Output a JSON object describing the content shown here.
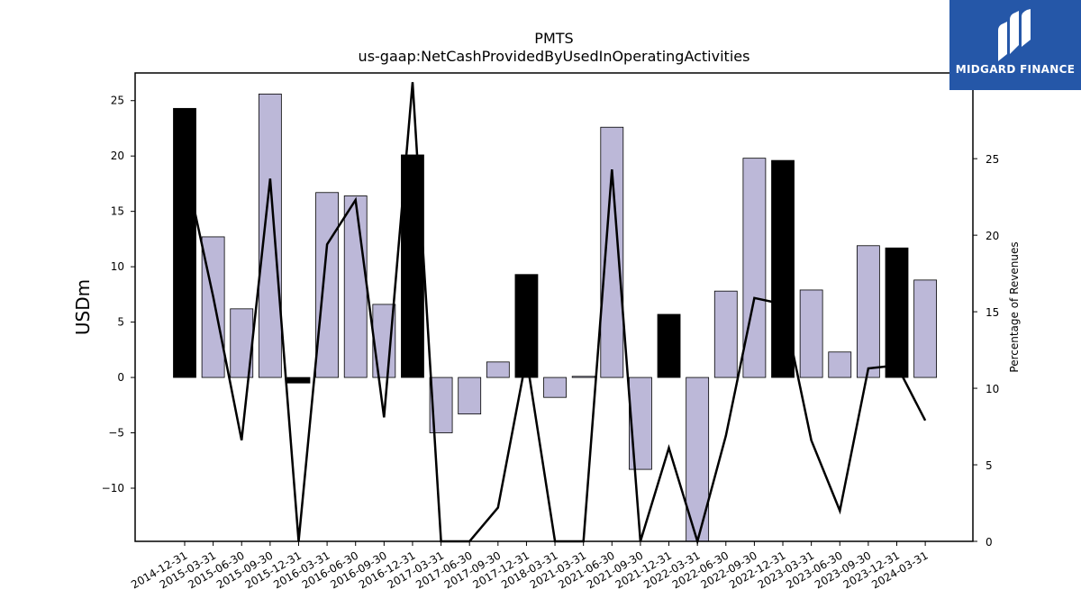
{
  "title_line1": "PMTS",
  "title_line2": "us-gaap:NetCashProvidedByUsedInOperatingActivities",
  "ylabel_left": "USDm",
  "ylabel_right": "Percentage of Revenues",
  "logo_text": "MIDGARD FINANCE",
  "colors": {
    "annual_bar": "#000000",
    "quarter_bar": "#bcb8d8",
    "line": "#000000",
    "logo_bg": "#2557a8"
  },
  "chart_data": {
    "type": "bar",
    "categories": [
      "2014-12-31",
      "2015-03-31",
      "2015-06-30",
      "2015-09-30",
      "2015-12-31",
      "2016-03-31",
      "2016-06-30",
      "2016-09-30",
      "2016-12-31",
      "2017-03-31",
      "2017-06-30",
      "2017-09-30",
      "2017-12-31",
      "2018-03-31",
      "2021-03-31",
      "2021-06-30",
      "2021-09-30",
      "2021-12-31",
      "2022-03-31",
      "2022-06-30",
      "2022-09-30",
      "2022-12-31",
      "2023-03-31",
      "2023-06-30",
      "2023-09-30",
      "2023-12-31",
      "2024-03-31"
    ],
    "series": [
      {
        "kind": "bar",
        "axis": "left",
        "values": [
          24.3,
          12.7,
          6.2,
          25.6,
          -0.5,
          16.7,
          16.4,
          6.6,
          20.1,
          -5.0,
          -3.3,
          1.4,
          9.3,
          -1.8,
          0.1,
          22.6,
          -8.3,
          5.7,
          -14.8,
          7.8,
          19.8,
          19.6,
          7.9,
          2.3,
          11.9,
          11.7,
          8.8
        ],
        "annual": [
          true,
          false,
          false,
          false,
          true,
          false,
          false,
          false,
          true,
          false,
          false,
          false,
          true,
          false,
          false,
          false,
          false,
          true,
          false,
          false,
          false,
          true,
          false,
          false,
          false,
          true,
          false
        ]
      },
      {
        "kind": "line",
        "axis": "right",
        "values": [
          24.6,
          16.0,
          6.6,
          23.7,
          -1.0,
          19.4,
          22.3,
          8.1,
          30.0,
          -5.0,
          -5.0,
          2.2,
          12.0,
          -5.0,
          -5.0,
          24.3,
          -5.0,
          6.1,
          -5.0,
          6.9,
          15.9,
          15.5,
          6.6,
          2.0,
          11.3,
          11.5,
          7.9
        ]
      }
    ],
    "ylim_left": [
      -14.8,
      27.5
    ],
    "yticks_left": [
      -10,
      -5,
      0,
      5,
      10,
      15,
      20,
      25
    ],
    "ylim_right": [
      0,
      30.6
    ],
    "yticks_right": [
      0,
      5,
      10,
      15,
      20,
      25,
      30
    ],
    "grid": false,
    "legend": "none"
  }
}
